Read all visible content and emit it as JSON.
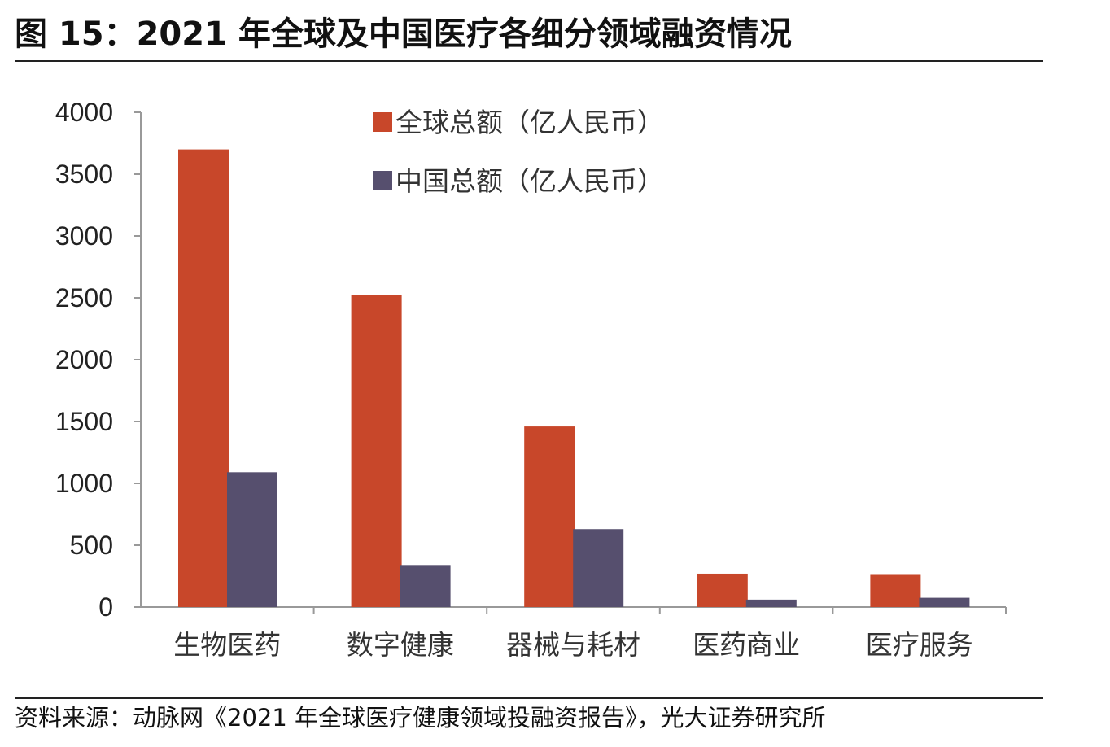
{
  "title": "图 15：2021 年全球及中国医疗各细分领域融资情况",
  "source": "资料来源：动脉网《2021 年全球医疗健康领域投融资报告》，光大证券研究所",
  "chart_data": {
    "type": "bar",
    "categories": [
      "生物医药",
      "数字健康",
      "器械与耗材",
      "医药商业",
      "医疗服务"
    ],
    "series": [
      {
        "name": "全球总额（亿人民币）",
        "color": "#C8472A",
        "values": [
          3700,
          2520,
          1460,
          270,
          260
        ]
      },
      {
        "name": "中国总额（亿人民币）",
        "color": "#564F6E",
        "values": [
          1090,
          340,
          630,
          60,
          75
        ]
      }
    ],
    "yticks": [
      "0",
      "500",
      "1000",
      "1500",
      "2000",
      "2500",
      "3000",
      "3500",
      "4000"
    ],
    "ylim": [
      0,
      4000
    ],
    "legend_position": "top-center",
    "grid": false
  }
}
